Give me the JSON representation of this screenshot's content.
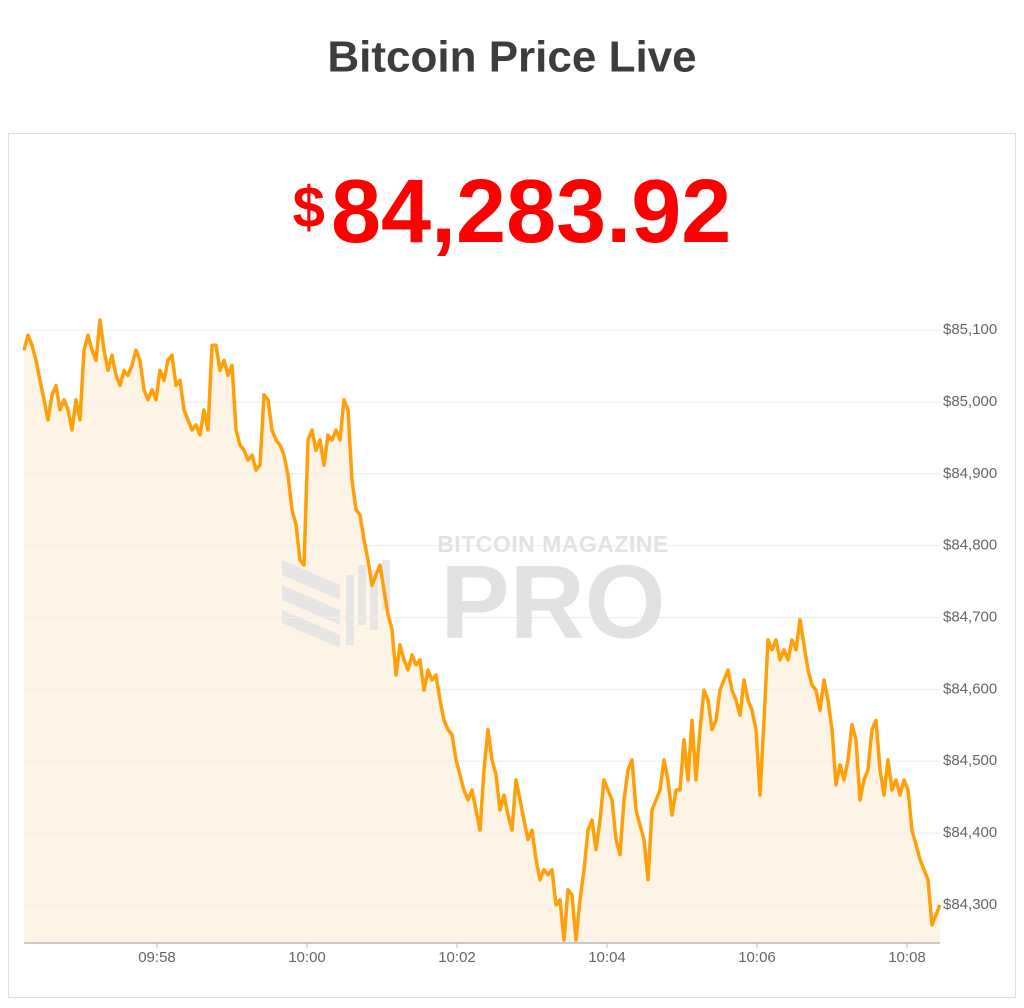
{
  "chart_data": {
    "type": "line",
    "title": "Bitcoin Price Live",
    "subtitle": "$84,283.92",
    "annotations": [
      "BITCOIN MAGAZINE",
      "PRO"
    ],
    "x": [
      35773.6,
      35776.8,
      35780,
      35783.2,
      35786.4,
      35789.6,
      35792.8,
      35796,
      35799.2,
      35802.4,
      35805.6,
      35808.8,
      35812,
      35815.2,
      35818.4,
      35821.6,
      35824.8,
      35828,
      35831.2,
      35834.4,
      35837.6,
      35840.8,
      35844,
      35847.2,
      35850.4,
      35853.6,
      35856.8,
      35860,
      35863.2,
      35866.4,
      35869.6,
      35872.8,
      35876,
      35879.2,
      35882.4,
      35885.6,
      35888.8,
      35892,
      35895.2,
      35898.4,
      35901.6,
      35904.8,
      35908,
      35911.2,
      35914.4,
      35917.6,
      35920.8,
      35924,
      35927.2,
      35930.4,
      35933.6,
      35936.8,
      35940,
      35943.2,
      35946.4,
      35949.6,
      35952.8,
      35956,
      35959.2,
      35962.4,
      35965.6,
      35968.8,
      35972,
      35975.2,
      35978.4,
      35981.6,
      35984.8,
      35988,
      35991.2,
      35994.4,
      35997.6,
      36000.8,
      36004,
      36007.2,
      36010.4,
      36013.6,
      36016.8,
      36020,
      36023.2,
      36026.4,
      36029.6,
      36032.8,
      36036,
      36039.2,
      36042.4,
      36045.6,
      36048.8,
      36052,
      36055.2,
      36058.4,
      36061.6,
      36064.8,
      36068,
      36071.2,
      36074.4,
      36077.6,
      36080.8,
      36084,
      36087.2,
      36090.4,
      36093.6,
      36096.8,
      36100,
      36103.2,
      36106.4,
      36109.6,
      36112.8,
      36116,
      36119.2,
      36122.4,
      36125.6,
      36128.8,
      36132,
      36135.2,
      36138.4,
      36141.6,
      36144.8,
      36148,
      36151.2,
      36154.4,
      36157.6,
      36160.8,
      36164,
      36167.2,
      36170.4,
      36173.6,
      36176.8,
      36180,
      36183.2,
      36186.4,
      36189.6,
      36192.8,
      36196,
      36199.2,
      36202.4,
      36205.6,
      36208.8,
      36212,
      36215.2,
      36218.4,
      36221.6,
      36224.8,
      36228,
      36231.2,
      36234.4,
      36237.6,
      36240.8,
      36244,
      36247.2,
      36250.4,
      36253.6,
      36256.8,
      36260,
      36263.2,
      36266.4,
      36269.6,
      36272.8,
      36276,
      36279.2,
      36282.4,
      36285.6,
      36288.8,
      36292,
      36295.2,
      36298.4,
      36301.6,
      36304.8,
      36308,
      36311.2,
      36314.4,
      36317.6,
      36320.8,
      36324,
      36327.2,
      36330.4,
      36333.6,
      36336.8,
      36340,
      36343.2,
      36346.4,
      36349.6,
      36352.8,
      36356,
      36359.2,
      36362.4,
      36365.6,
      36368.8,
      36372,
      36375.2,
      36378.4,
      36381.6,
      36384.8,
      36388,
      36391.2,
      36394.4,
      36397.6,
      36400.8,
      36404,
      36407.2,
      36410.4,
      36413.6,
      36416.8,
      36420,
      36423.2,
      36426.4,
      36429.6,
      36432.8,
      36436,
      36439.2,
      36442.4,
      36445.6,
      36448.8,
      36452,
      36455.2,
      36458.4,
      36461.6,
      36464.8,
      36468,
      36471.2,
      36474.4,
      36477.6,
      36480.8,
      36484,
      36487.2,
      36490.4,
      36493.6,
      36496.8,
      36500,
      36503.2,
      36506.4
    ],
    "series": [
      {
        "color": "#ff9f0a",
        "values": [
          85072,
          85093,
          85079,
          85058,
          85030,
          85003,
          84975,
          85010,
          85023,
          84989,
          85003,
          84989,
          84961,
          85003,
          84975,
          85072,
          85093,
          85072,
          85058,
          85114,
          85072,
          85044,
          85065,
          85037,
          85023,
          85044,
          85037,
          85051,
          85072,
          85058,
          85017,
          85003,
          85017,
          85003,
          85044,
          85030,
          85058,
          85065,
          85023,
          85030,
          84989,
          84975,
          84961,
          84968,
          84954,
          84989,
          84961,
          85079,
          85079,
          85044,
          85058,
          85037,
          85051,
          84961,
          84940,
          84933,
          84919,
          84926,
          84905,
          84912,
          85010,
          85003,
          84961,
          84947,
          84940,
          84926,
          84898,
          84850,
          84829,
          84780,
          84773,
          84947,
          84961,
          84933,
          84947,
          84912,
          84954,
          84947,
          84961,
          84947,
          85003,
          84989,
          84891,
          84850,
          84843,
          84808,
          84780,
          84745,
          84759,
          84773,
          84738,
          84704,
          84683,
          84620,
          84662,
          84641,
          84627,
          84648,
          84634,
          84641,
          84599,
          84627,
          84613,
          84620,
          84585,
          84557,
          84544,
          84537,
          84502,
          84481,
          84460,
          84446,
          84460,
          84432,
          84404,
          84488,
          84544,
          84502,
          84481,
          84432,
          84453,
          84425,
          84404,
          84474,
          84446,
          84418,
          84391,
          84404,
          84363,
          84335,
          84349,
          84342,
          84349,
          84300,
          84307,
          84251,
          84321,
          84314,
          84251,
          84307,
          84349,
          84404,
          84418,
          84377,
          84418,
          84474,
          84460,
          84446,
          84391,
          84370,
          84446,
          84488,
          84502,
          84432,
          84411,
          84391,
          84335,
          84432,
          84446,
          84460,
          84502,
          84474,
          84425,
          84460,
          84460,
          84530,
          84474,
          84557,
          84474,
          84544,
          84599,
          84585,
          84544,
          84557,
          84599,
          84613,
          84627,
          84599,
          84585,
          84564,
          84613,
          84585,
          84571,
          84544,
          84453,
          84557,
          84669,
          84655,
          84669,
          84641,
          84655,
          84641,
          84669,
          84655,
          84697,
          84662,
          84627,
          84606,
          84599,
          84571,
          84613,
          84585,
          84544,
          84467,
          84495,
          84474,
          84502,
          84551,
          84530,
          84446,
          84474,
          84488,
          84544,
          84557,
          84488,
          84453,
          84502,
          84460,
          84474,
          84453,
          84474,
          84460,
          84404,
          84384,
          84363,
          84349,
          84335,
          84272,
          84286,
          84300
        ]
      }
    ],
    "fill_color": "#fdf4e6",
    "xlim": [
      35773.6,
      36506.4
    ],
    "xticks": [
      {
        "value": 35880,
        "label": "09:58"
      },
      {
        "value": 36000,
        "label": "10:00"
      },
      {
        "value": 36120,
        "label": "10:02"
      },
      {
        "value": 36240,
        "label": "10:04"
      },
      {
        "value": 36360,
        "label": "10:06"
      },
      {
        "value": 36480,
        "label": "10:08"
      }
    ],
    "ylim": [
      84247,
      85121
    ],
    "yticks": [
      {
        "value": 84300,
        "label": "$84,300"
      },
      {
        "value": 84400,
        "label": "$84,400"
      },
      {
        "value": 84500,
        "label": "$84,500"
      },
      {
        "value": 84600,
        "label": "$84,600"
      },
      {
        "value": 84700,
        "label": "$84,700"
      },
      {
        "value": 84800,
        "label": "$84,800"
      },
      {
        "value": 84900,
        "label": "$84,900"
      },
      {
        "value": 85000,
        "label": "$85,000"
      },
      {
        "value": 85100,
        "label": "$85,100"
      }
    ],
    "grid": true,
    "y_axis_side": "right"
  }
}
